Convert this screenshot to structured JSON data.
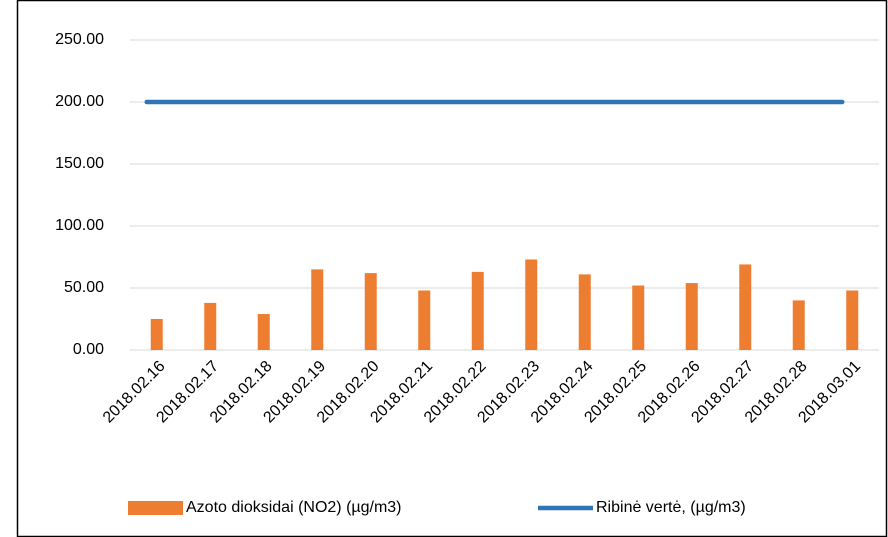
{
  "chart_data": {
    "type": "bar",
    "categories": [
      "2018.02.16",
      "2018.02.17",
      "2018.02.18",
      "2018.02.19",
      "2018.02.20",
      "2018.02.21",
      "2018.02.22",
      "2018.02.23",
      "2018.02.24",
      "2018.02.25",
      "2018.02.26",
      "2018.02.27",
      "2018.02.28",
      "2018.03.01"
    ],
    "series": [
      {
        "name": "Azoto dioksidai (NO2) (µg/m3)",
        "type": "bar",
        "color": "#ed7d31",
        "values": [
          25,
          38,
          29,
          65,
          62,
          48,
          63,
          73,
          61,
          52,
          54,
          69,
          40,
          48
        ]
      },
      {
        "name": "Ribinė vertė, (µg/m3)",
        "type": "line",
        "color": "#2e75b6",
        "values": [
          200,
          200,
          200,
          200,
          200,
          200,
          200,
          200,
          200,
          200,
          200,
          200,
          200,
          200
        ]
      }
    ],
    "ylim": [
      0,
      250
    ],
    "yticks": [
      {
        "value": 0,
        "label": "0.00"
      },
      {
        "value": 50,
        "label": "50.00"
      },
      {
        "value": 100,
        "label": "100.00"
      },
      {
        "value": 150,
        "label": "150.00"
      },
      {
        "value": 200,
        "label": "200.00"
      },
      {
        "value": 250,
        "label": "250.00"
      }
    ],
    "grid": true,
    "legend": "bottom"
  }
}
